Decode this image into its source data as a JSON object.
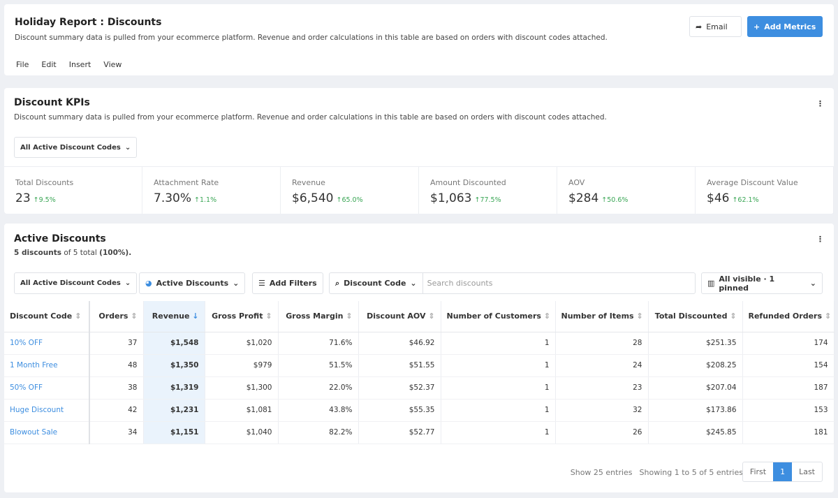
{
  "header": {
    "title": "Holiday Report : Discounts",
    "description": "Discount summary data is pulled from your ecommerce platform. Revenue and order calculations in this table are based on orders with discount codes attached.",
    "buttons": [
      "Email",
      "Add Metrics"
    ],
    "menu": [
      "File",
      "Edit",
      "Insert",
      "View"
    ]
  },
  "kpi_section": {
    "title": "Discount KPIs",
    "description": "Discount summary data is pulled from your ecommerce platform. Revenue and order calculations in this table are based on orders with discount codes attached.",
    "filter": "All Active Discount Codes",
    "kpis": [
      {
        "label": "Total Discounts",
        "value": "23",
        "change": "9.5%"
      },
      {
        "label": "Attachment Rate",
        "value": "7.30%",
        "change": "1.1%"
      },
      {
        "label": "Revenue",
        "value": "$6,540",
        "change": "65.0%"
      },
      {
        "label": "Amount Discounted",
        "value": "$1,063",
        "change": "77.5%"
      },
      {
        "label": "AOV",
        "value": "$284",
        "change": "50.6%"
      },
      {
        "label": "Average Discount Value",
        "value": "$46",
        "change": "62.1%"
      }
    ]
  },
  "table_section": {
    "title": "Active Discounts",
    "summary": {
      "count": "5 discounts",
      "of": "of 5 total",
      "percent": "(100%)."
    },
    "toolbar": {
      "filter": "All Active Discount Codes",
      "view": "Active Discounts",
      "add_filters": "Add Filters",
      "search_field": "Discount Code",
      "search_placeholder": "Search discounts",
      "columns": "All visible · 1 pinned"
    },
    "table": {
      "columns": [
        "Discount Code",
        "Orders",
        "Revenue",
        "Gross Profit",
        "Gross Margin",
        "Discount AOV",
        "Number of Customers",
        "Number of Items",
        "Total Discounted",
        "Refunded Orders"
      ],
      "rows": [
        [
          "10% OFF",
          "37",
          "$1,548",
          "$1,020",
          "71.6%",
          "$46.92",
          "1",
          "28",
          "$251.35",
          "174"
        ],
        [
          "1 Month Free",
          "48",
          "$1,350",
          "$979",
          "51.5%",
          "$51.55",
          "1",
          "24",
          "$208.25",
          "154"
        ],
        [
          "50% OFF",
          "38",
          "$1,319",
          "$1,300",
          "22.0%",
          "$52.37",
          "1",
          "23",
          "$207.04",
          "187"
        ],
        [
          "Huge Discount",
          "42",
          "$1,231",
          "$1,081",
          "43.8%",
          "$55.35",
          "1",
          "32",
          "$173.86",
          "153"
        ],
        [
          "Blowout Sale",
          "34",
          "$1,151",
          "$1,040",
          "82.2%",
          "$52.77",
          "1",
          "26",
          "$245.85",
          "181"
        ]
      ]
    },
    "footer": {
      "show": "Show 25 entries",
      "showing": "Showing 1 to 5 of 5 entries",
      "pagination": [
        "First",
        "1",
        "Last"
      ]
    }
  }
}
